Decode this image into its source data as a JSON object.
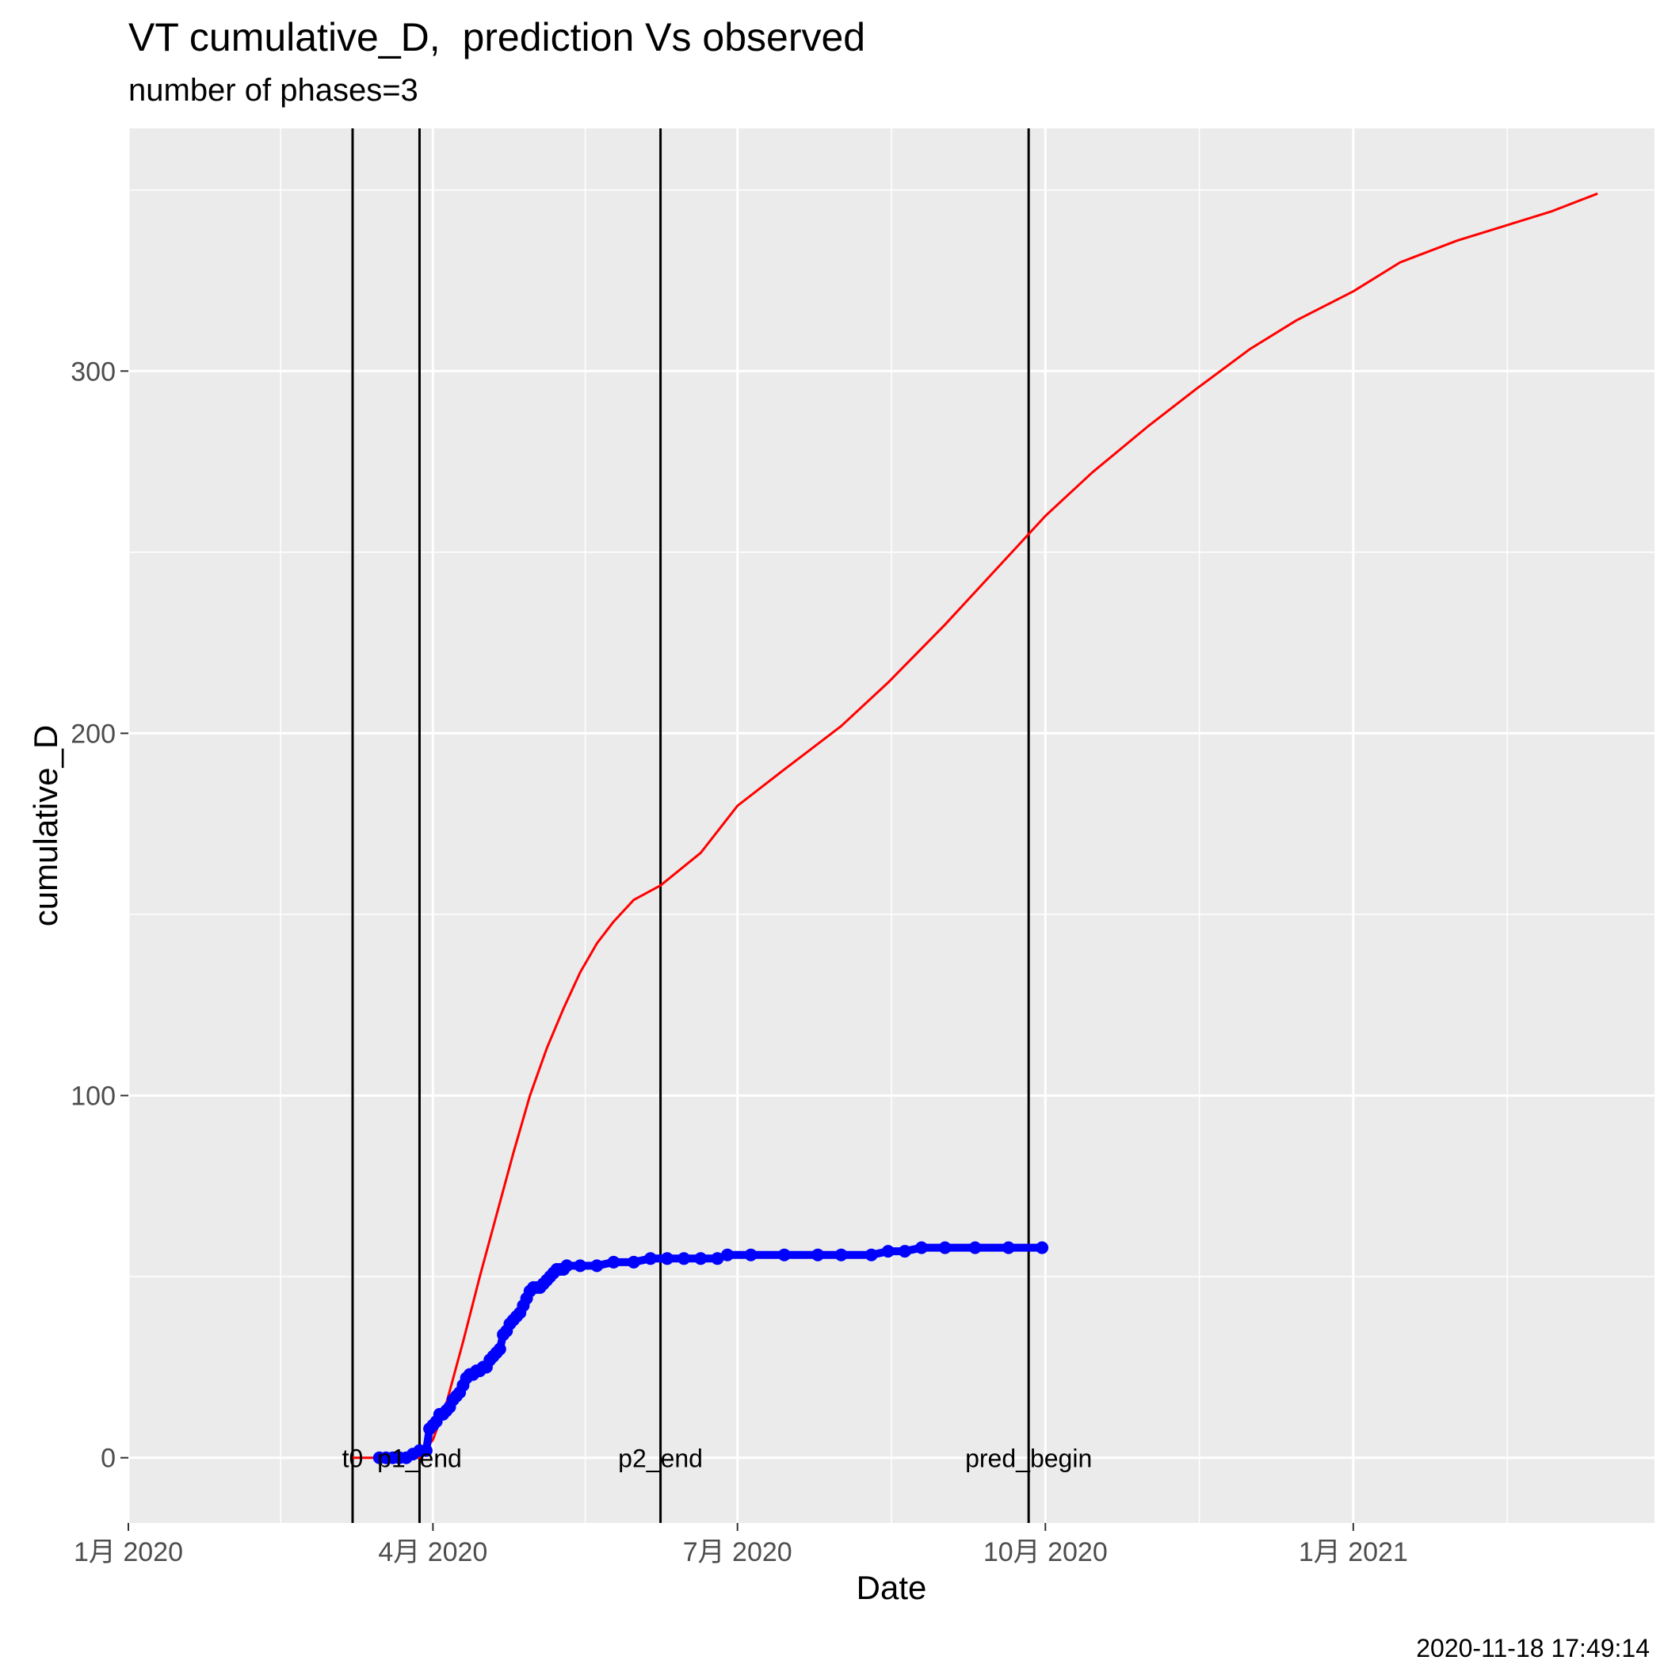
{
  "chart_data": {
    "type": "line",
    "title": "VT cumulative_D,  prediction Vs observed",
    "subtitle": "number of phases=3",
    "caption": "2020-11-18 17:49:14",
    "xlabel": "Date",
    "ylabel": "cumulative_D",
    "xlim": [
      "2020-01-01",
      "2021-04-01"
    ],
    "ylim": [
      -18,
      367
    ],
    "x_ticks": [
      {
        "date": "2020-01-01",
        "label": "1月 2020"
      },
      {
        "date": "2020-04-01",
        "label": "4月 2020"
      },
      {
        "date": "2020-07-01",
        "label": "7月 2020"
      },
      {
        "date": "2020-10-01",
        "label": "10月 2020"
      },
      {
        "date": "2021-01-01",
        "label": "1月 2021"
      }
    ],
    "y_ticks": [
      0,
      100,
      200,
      300
    ],
    "grid": true,
    "vlines": [
      {
        "date": "2020-03-08",
        "label": "t0"
      },
      {
        "date": "2020-03-28",
        "label": "p1_end"
      },
      {
        "date": "2020-06-08",
        "label": "p2_end"
      },
      {
        "date": "2020-09-26",
        "label": "pred_begin"
      }
    ],
    "series": [
      {
        "color": "#ff0000",
        "style": "line",
        "points": [
          [
            "2020-03-08",
            0
          ],
          [
            "2020-03-28",
            0
          ],
          [
            "2020-04-01",
            5
          ],
          [
            "2020-04-05",
            15
          ],
          [
            "2020-04-10",
            32
          ],
          [
            "2020-04-15",
            50
          ],
          [
            "2020-04-20",
            67
          ],
          [
            "2020-04-25",
            84
          ],
          [
            "2020-04-30",
            100
          ],
          [
            "2020-05-05",
            113
          ],
          [
            "2020-05-10",
            124
          ],
          [
            "2020-05-15",
            134
          ],
          [
            "2020-05-20",
            142
          ],
          [
            "2020-05-25",
            148
          ],
          [
            "2020-05-31",
            154
          ],
          [
            "2020-06-08",
            158
          ],
          [
            "2020-06-20",
            167
          ],
          [
            "2020-07-01",
            180
          ],
          [
            "2020-07-15",
            190
          ],
          [
            "2020-08-01",
            202
          ],
          [
            "2020-08-15",
            214
          ],
          [
            "2020-09-01",
            230
          ],
          [
            "2020-09-26",
            255
          ],
          [
            "2020-10-01",
            260
          ],
          [
            "2020-10-15",
            272
          ],
          [
            "2020-11-01",
            285
          ],
          [
            "2020-11-15",
            295
          ],
          [
            "2020-12-01",
            306
          ],
          [
            "2020-12-15",
            314
          ],
          [
            "2021-01-01",
            322
          ],
          [
            "2021-01-15",
            330
          ],
          [
            "2021-02-01",
            336
          ],
          [
            "2021-02-15",
            340
          ],
          [
            "2021-03-01",
            344
          ],
          [
            "2021-03-15",
            349
          ]
        ]
      },
      {
        "color": "#0000ff",
        "style": "points",
        "points": [
          [
            "2020-03-16",
            0
          ],
          [
            "2020-03-18",
            0
          ],
          [
            "2020-03-20",
            0
          ],
          [
            "2020-03-22",
            0
          ],
          [
            "2020-03-24",
            0
          ],
          [
            "2020-03-26",
            1
          ],
          [
            "2020-03-28",
            2
          ],
          [
            "2020-03-30",
            2
          ],
          [
            "2020-03-31",
            8
          ],
          [
            "2020-04-01",
            9
          ],
          [
            "2020-04-02",
            10
          ],
          [
            "2020-04-03",
            12
          ],
          [
            "2020-04-04",
            12
          ],
          [
            "2020-04-05",
            13
          ],
          [
            "2020-04-06",
            14
          ],
          [
            "2020-04-07",
            16
          ],
          [
            "2020-04-08",
            17
          ],
          [
            "2020-04-09",
            18
          ],
          [
            "2020-04-10",
            20
          ],
          [
            "2020-04-11",
            22
          ],
          [
            "2020-04-12",
            23
          ],
          [
            "2020-04-13",
            23
          ],
          [
            "2020-04-14",
            24
          ],
          [
            "2020-04-15",
            24
          ],
          [
            "2020-04-16",
            25
          ],
          [
            "2020-04-17",
            25
          ],
          [
            "2020-04-18",
            27
          ],
          [
            "2020-04-19",
            28
          ],
          [
            "2020-04-20",
            29
          ],
          [
            "2020-04-21",
            30
          ],
          [
            "2020-04-22",
            34
          ],
          [
            "2020-04-23",
            35
          ],
          [
            "2020-04-24",
            37
          ],
          [
            "2020-04-25",
            38
          ],
          [
            "2020-04-26",
            39
          ],
          [
            "2020-04-27",
            40
          ],
          [
            "2020-04-28",
            42
          ],
          [
            "2020-04-29",
            44
          ],
          [
            "2020-04-30",
            46
          ],
          [
            "2020-05-01",
            47
          ],
          [
            "2020-05-02",
            47
          ],
          [
            "2020-05-03",
            47
          ],
          [
            "2020-05-04",
            48
          ],
          [
            "2020-05-05",
            49
          ],
          [
            "2020-05-06",
            50
          ],
          [
            "2020-05-07",
            51
          ],
          [
            "2020-05-08",
            52
          ],
          [
            "2020-05-09",
            52
          ],
          [
            "2020-05-10",
            52
          ],
          [
            "2020-05-11",
            53
          ],
          [
            "2020-05-15",
            53
          ],
          [
            "2020-05-20",
            53
          ],
          [
            "2020-05-25",
            54
          ],
          [
            "2020-05-31",
            54
          ],
          [
            "2020-06-05",
            55
          ],
          [
            "2020-06-10",
            55
          ],
          [
            "2020-06-15",
            55
          ],
          [
            "2020-06-20",
            55
          ],
          [
            "2020-06-25",
            55
          ],
          [
            "2020-06-28",
            56
          ],
          [
            "2020-07-05",
            56
          ],
          [
            "2020-07-15",
            56
          ],
          [
            "2020-07-25",
            56
          ],
          [
            "2020-08-01",
            56
          ],
          [
            "2020-08-10",
            56
          ],
          [
            "2020-08-15",
            57
          ],
          [
            "2020-08-20",
            57
          ],
          [
            "2020-08-25",
            58
          ],
          [
            "2020-09-01",
            58
          ],
          [
            "2020-09-10",
            58
          ],
          [
            "2020-09-20",
            58
          ],
          [
            "2020-09-30",
            58
          ]
        ]
      }
    ]
  }
}
